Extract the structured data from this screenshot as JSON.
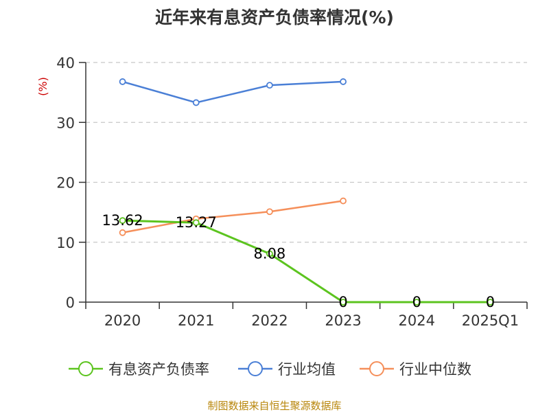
{
  "chart_data": {
    "type": "line",
    "title": "近年来有息资产负债率情况(%)",
    "ylabel": "(%)",
    "xlabel": "",
    "categories": [
      "2020",
      "2021",
      "2022",
      "2023",
      "2024",
      "2025Q1"
    ],
    "ylim": [
      0,
      40
    ],
    "yticks": [
      0,
      10,
      20,
      30,
      40
    ],
    "grid": true,
    "legend_position": "bottom",
    "series": [
      {
        "name": "有息资产负债率",
        "color": "#5cc41f",
        "values": [
          13.62,
          13.27,
          8.08,
          0,
          0,
          0
        ],
        "data_labels": [
          "13.62",
          "13.27",
          "8.08",
          "0",
          "0",
          "0"
        ]
      },
      {
        "name": "行业均值",
        "color": "#4a7fd6",
        "values": [
          36.8,
          33.3,
          36.2,
          36.8,
          null,
          null
        ]
      },
      {
        "name": "行业中位数",
        "color": "#f58f5a",
        "values": [
          11.6,
          13.9,
          15.1,
          16.9,
          null,
          null
        ]
      }
    ]
  },
  "source_text": "制图数据来自恒生聚源数据库"
}
